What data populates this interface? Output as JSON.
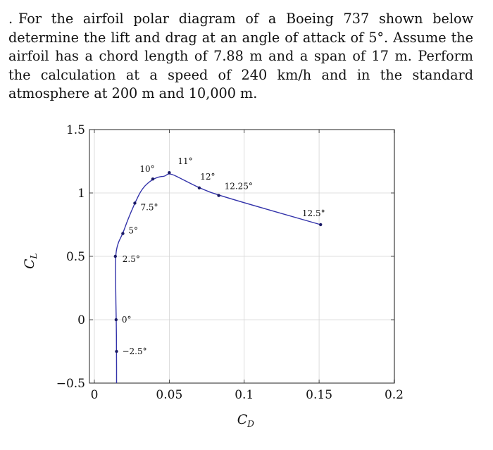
{
  "problem": {
    "bullet": ".",
    "text": "For the airfoil polar diagram of a Boeing 737 shown below determine the lift and drag at an angle of attack of 5°. Assume the airfoil has a chord length of 7.88 m and a span of 17 m. Perform the calculation at a speed of 240 km/h and in the standard atmosphere at 200 m and 10,000 m."
  },
  "chart_data": {
    "type": "line",
    "title": "",
    "xlabel": "C",
    "xlabel_sub": "D",
    "ylabel": "C",
    "ylabel_sub": "L",
    "xlim": [
      -0.0,
      0.2
    ],
    "ylim": [
      -0.5,
      1.5
    ],
    "xticks": [
      0,
      0.05,
      0.1,
      0.15,
      0.2
    ],
    "xtick_labels": [
      "0",
      "0.05",
      "0.1",
      "0.15",
      "0.2"
    ],
    "yticks": [
      -0.5,
      0,
      0.5,
      1,
      1.5
    ],
    "ytick_labels": [
      "−0.5",
      "0",
      "0.5",
      "1",
      "1.5"
    ],
    "grid": true,
    "line_color": "#3333aa",
    "points": [
      {
        "cd": 0.014,
        "cl": 0.5,
        "label": "2.5°"
      },
      {
        "cd": 0.0145,
        "cl": 0.0,
        "label": "0°"
      },
      {
        "cd": 0.0148,
        "cl": -0.25,
        "label": "−2.5°"
      },
      {
        "cd": 0.019,
        "cl": 0.68,
        "label": "5°"
      },
      {
        "cd": 0.027,
        "cl": 0.92,
        "label": "7.5°"
      },
      {
        "cd": 0.039,
        "cl": 1.11,
        "label": "10°"
      },
      {
        "cd": 0.05,
        "cl": 1.16,
        "label": "11°"
      },
      {
        "cd": 0.07,
        "cl": 1.04,
        "label": "12°"
      },
      {
        "cd": 0.083,
        "cl": 0.98,
        "label": "12.25°"
      },
      {
        "cd": 0.151,
        "cl": 0.75,
        "label": "12.5°"
      }
    ],
    "curve": [
      [
        0.0148,
        -0.5
      ],
      [
        0.0148,
        -0.25
      ],
      [
        0.0146,
        0.0
      ],
      [
        0.0142,
        0.25
      ],
      [
        0.014,
        0.5
      ],
      [
        0.0155,
        0.6
      ],
      [
        0.019,
        0.68
      ],
      [
        0.022,
        0.78
      ],
      [
        0.027,
        0.92
      ],
      [
        0.032,
        1.04
      ],
      [
        0.039,
        1.11
      ],
      [
        0.044,
        1.13
      ],
      [
        0.047,
        1.13
      ],
      [
        0.05,
        1.16
      ],
      [
        0.06,
        1.1
      ],
      [
        0.07,
        1.04
      ],
      [
        0.083,
        0.98
      ],
      [
        0.151,
        0.75
      ]
    ]
  }
}
